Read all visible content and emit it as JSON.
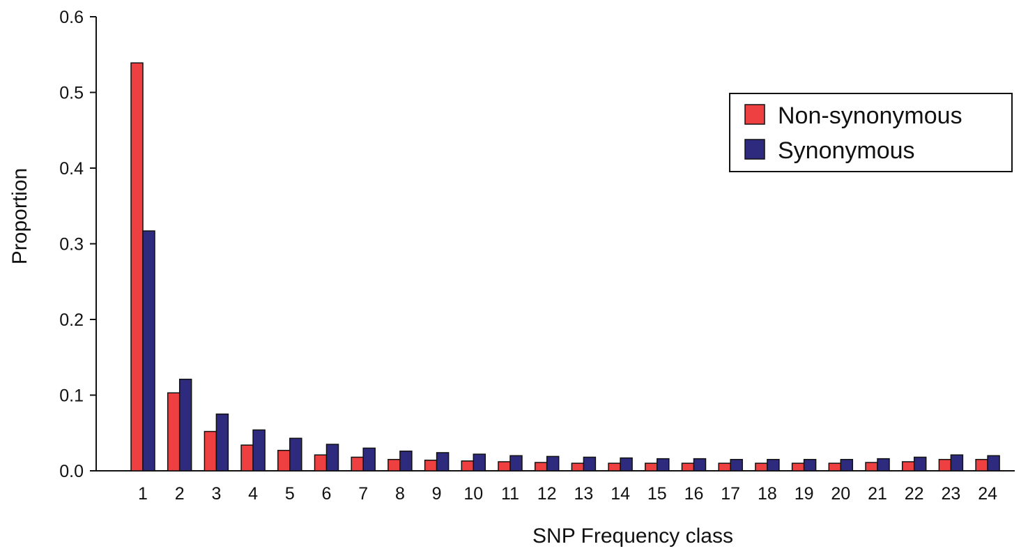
{
  "chart_data": {
    "type": "bar",
    "xlabel": "SNP Frequency class",
    "ylabel": "Proportion",
    "ylim": [
      0,
      0.6
    ],
    "yticks": [
      "0.0",
      "0.1",
      "0.2",
      "0.3",
      "0.4",
      "0.5",
      "0.6"
    ],
    "categories": [
      "1",
      "2",
      "3",
      "4",
      "5",
      "6",
      "7",
      "8",
      "9",
      "10",
      "11",
      "12",
      "13",
      "14",
      "15",
      "16",
      "17",
      "18",
      "19",
      "20",
      "21",
      "22",
      "23",
      "24"
    ],
    "series": [
      {
        "name": "Non-synonymous",
        "color": "#ee4040",
        "values": [
          0.539,
          0.103,
          0.052,
          0.034,
          0.027,
          0.021,
          0.018,
          0.015,
          0.014,
          0.013,
          0.012,
          0.011,
          0.01,
          0.01,
          0.01,
          0.01,
          0.01,
          0.01,
          0.01,
          0.01,
          0.011,
          0.012,
          0.015,
          0.015
        ]
      },
      {
        "name": "Synonymous",
        "color": "#2e2a7e",
        "values": [
          0.317,
          0.121,
          0.075,
          0.054,
          0.043,
          0.035,
          0.03,
          0.026,
          0.024,
          0.022,
          0.02,
          0.019,
          0.018,
          0.017,
          0.016,
          0.016,
          0.015,
          0.015,
          0.015,
          0.015,
          0.016,
          0.018,
          0.021,
          0.02
        ]
      }
    ],
    "grid": false,
    "legend_position": "top-right"
  }
}
